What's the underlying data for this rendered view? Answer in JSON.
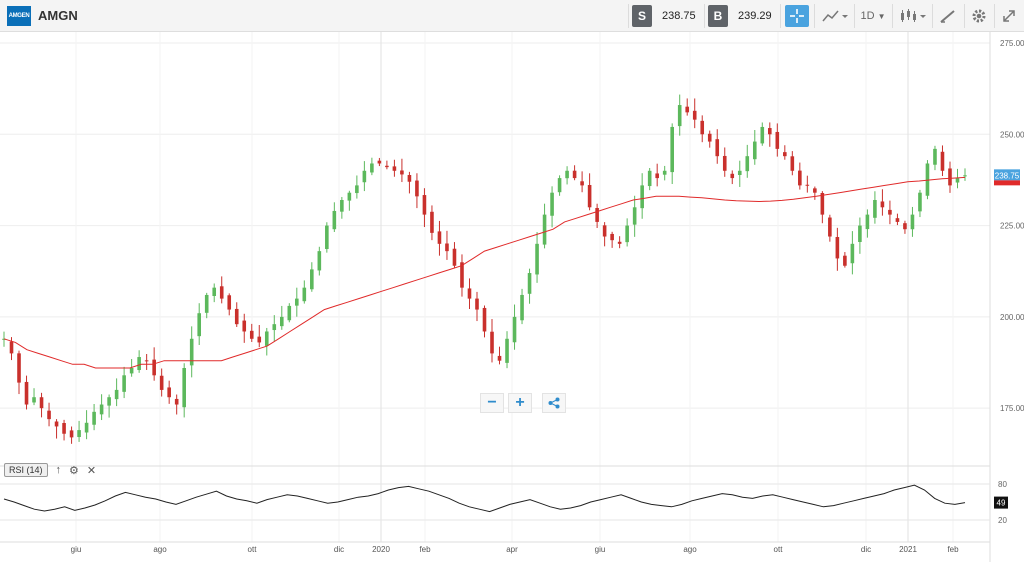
{
  "header": {
    "logo_text": "AMGEN",
    "symbol": "AMGN",
    "sell_tag": "S",
    "sell_price": "238.75",
    "buy_tag": "B",
    "buy_price": "239.29",
    "interval": "1D",
    "accent": "#4aa3df"
  },
  "controls": {
    "zoom_out": "−",
    "zoom_in": "+",
    "share_icon": "share-icon"
  },
  "rsi": {
    "label": "RSI (14)",
    "value_badge": "49",
    "levels": [
      80,
      20
    ]
  },
  "price_badges": {
    "current": "238.75",
    "sma_color": "#e02a2a"
  },
  "chart_data": {
    "type": "candlestick",
    "y_ticks": [
      "275.00",
      "250.00",
      "225.00",
      "200.00",
      "175.00"
    ],
    "ylim": [
      163,
      278
    ],
    "x_ticks": [
      "giu",
      "ago",
      "ott",
      "dic",
      "2020",
      "feb",
      "apr",
      "giu",
      "ago",
      "ott",
      "dic",
      "2021",
      "feb"
    ],
    "colors": {
      "up": "#5cb85c",
      "down": "#c9302c",
      "sma": "#e02a2a",
      "rsi": "#222222"
    },
    "close": [
      194,
      190,
      182,
      176,
      178,
      175,
      172,
      170,
      168,
      167,
      169,
      171,
      174,
      176,
      178,
      180,
      184,
      186,
      189,
      188,
      184,
      180,
      178,
      176,
      186,
      194,
      201,
      206,
      208,
      205,
      202,
      198,
      196,
      194,
      193,
      196,
      198,
      200,
      203,
      205,
      208,
      213,
      218,
      225,
      229,
      232,
      234,
      236,
      240,
      242,
      242,
      241,
      240,
      239,
      237,
      233,
      228,
      223,
      220,
      218,
      214,
      208,
      205,
      202,
      196,
      190,
      188,
      194,
      200,
      206,
      212,
      220,
      228,
      234,
      238,
      240,
      238,
      236,
      230,
      226,
      222,
      221,
      220,
      225,
      230,
      236,
      240,
      238,
      240,
      252,
      258,
      256,
      254,
      250,
      248,
      244,
      240,
      238,
      240,
      244,
      248,
      252,
      250,
      246,
      244,
      240,
      236,
      236,
      234,
      228,
      222,
      216,
      214,
      220,
      225,
      228,
      232,
      230,
      228,
      226,
      224,
      228,
      234,
      242,
      246,
      240,
      236,
      238,
      238.75
    ],
    "sma_200": [
      194,
      193,
      191,
      190,
      189,
      188,
      187,
      187,
      186,
      186,
      186,
      186,
      187,
      187,
      188,
      188,
      188,
      188,
      188,
      188,
      189,
      190,
      191,
      192,
      194,
      196,
      198,
      200,
      202,
      203,
      204,
      205,
      206,
      207,
      208,
      209,
      210,
      211,
      212,
      213,
      214,
      216,
      218,
      219,
      220,
      221,
      222,
      223,
      224,
      226,
      227,
      228,
      229,
      230,
      231,
      232,
      232.5,
      233,
      233,
      233,
      232.8,
      232.6,
      232.3,
      232,
      231.8,
      231.7,
      231.6,
      231.7,
      231.9,
      232.2,
      232.6,
      233,
      233.5,
      234,
      234.5,
      235,
      235.5,
      236,
      236.5,
      237,
      237.2,
      237.5,
      237.8,
      238,
      238.2
    ],
    "rsi_values": [
      55,
      50,
      44,
      38,
      35,
      38,
      42,
      36,
      40,
      45,
      52,
      60,
      66,
      62,
      58,
      55,
      50,
      46,
      52,
      58,
      63,
      68,
      60,
      55,
      52,
      48,
      54,
      58,
      62,
      60,
      56,
      52,
      48,
      50,
      54,
      58,
      60,
      64,
      70,
      74,
      76,
      72,
      68,
      62,
      56,
      48,
      42,
      38,
      34,
      40,
      46,
      50,
      54,
      48,
      42,
      38,
      40,
      44,
      50,
      54,
      58,
      62,
      56,
      50,
      46,
      44,
      42,
      46,
      52,
      56,
      60,
      64,
      62,
      58,
      56,
      60,
      62,
      58,
      54,
      50,
      46,
      42,
      44,
      48,
      52,
      56,
      60,
      64,
      70,
      74,
      78,
      70,
      56,
      48,
      46,
      49
    ]
  }
}
